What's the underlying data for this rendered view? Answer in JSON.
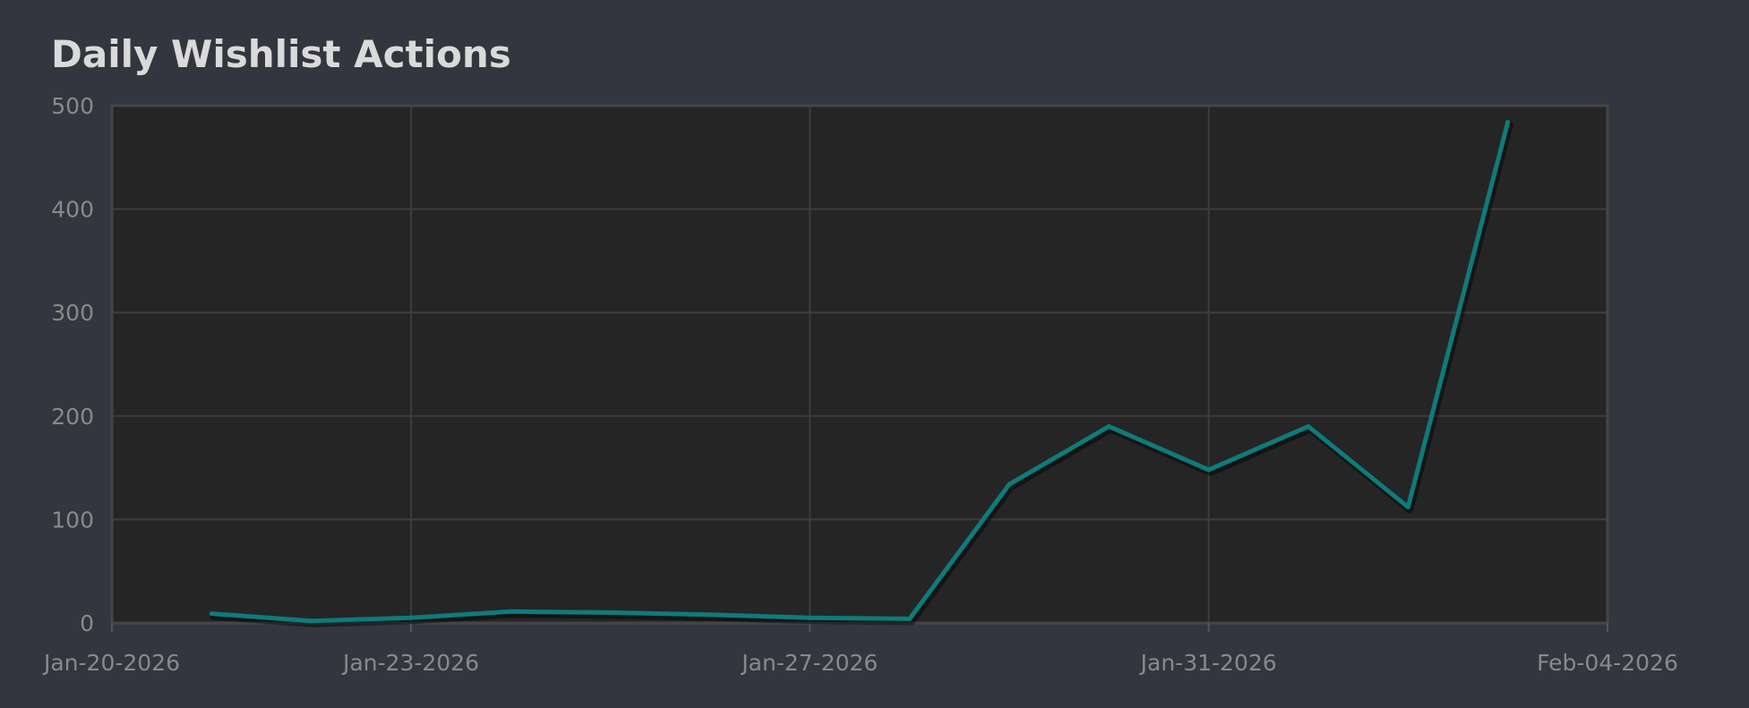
{
  "chart_data": {
    "type": "line",
    "title": "Daily Wishlist Actions",
    "xlabel": "",
    "ylabel": "",
    "x_ticks": [
      "Jan-20-2026",
      "Jan-23-2026",
      "Jan-27-2026",
      "Jan-31-2026",
      "Feb-04-2026"
    ],
    "y_ticks": [
      "0",
      "100",
      "200",
      "300",
      "400",
      "500"
    ],
    "ylim": [
      0,
      500
    ],
    "grid": true,
    "legend": "none",
    "colors": {
      "background": "#33363e",
      "plot_area": "#252525",
      "grid": "#3d3d3d",
      "line": "#0e7b7b",
      "tick_text": "#8a8a8a",
      "title": "#dadada"
    },
    "series": [
      {
        "color": "#0e7b7b",
        "points": [
          {
            "x": "2026-01-21",
            "y": 9
          },
          {
            "x": "2026-01-22",
            "y": 2
          },
          {
            "x": "2026-01-23",
            "y": 5
          },
          {
            "x": "2026-01-24",
            "y": 11
          },
          {
            "x": "2026-01-25",
            "y": 10
          },
          {
            "x": "2026-01-26",
            "y": 8
          },
          {
            "x": "2026-01-27",
            "y": 5
          },
          {
            "x": "2026-01-28",
            "y": 4
          },
          {
            "x": "2026-01-29",
            "y": 134
          },
          {
            "x": "2026-01-30",
            "y": 190
          },
          {
            "x": "2026-01-31",
            "y": 148
          },
          {
            "x": "2026-02-01",
            "y": 190
          },
          {
            "x": "2026-02-02",
            "y": 112
          },
          {
            "x": "2026-02-03",
            "y": 484
          }
        ]
      }
    ]
  }
}
